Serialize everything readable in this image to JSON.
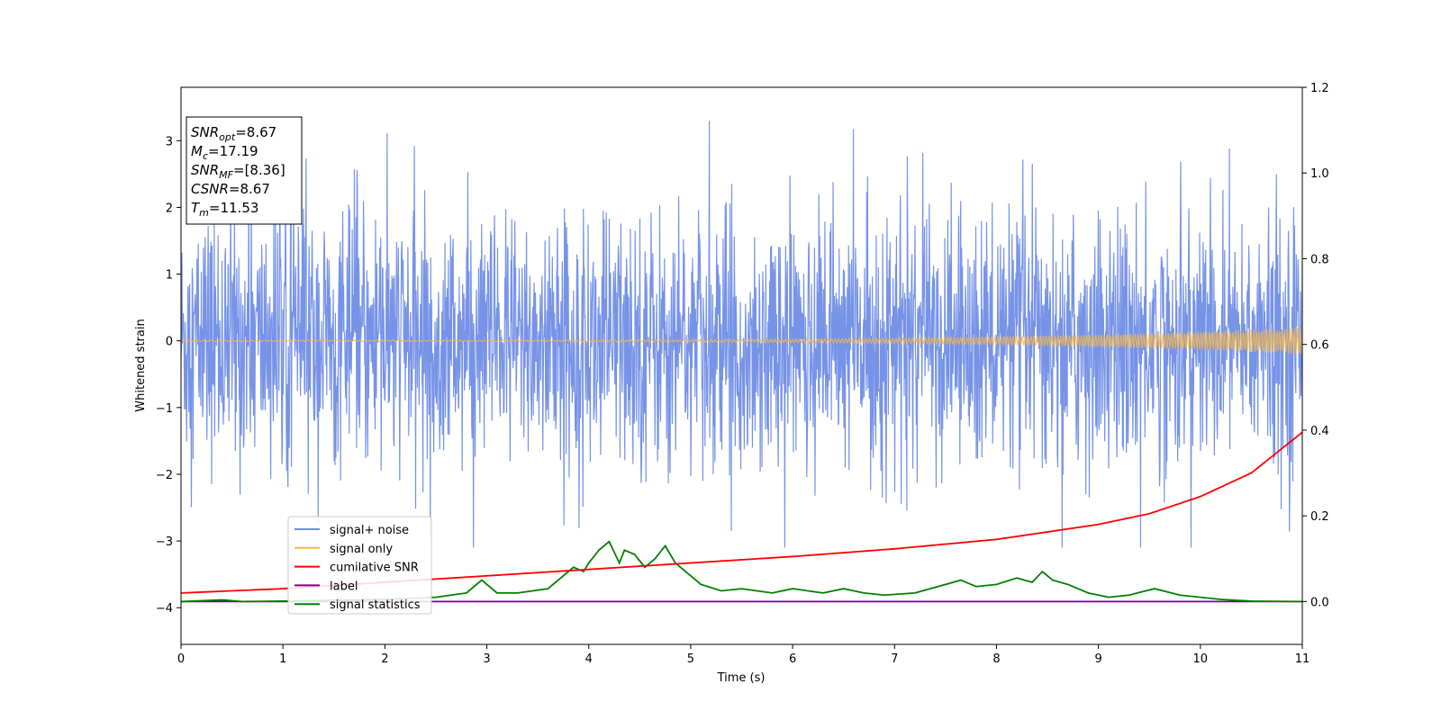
{
  "chart_data": {
    "type": "line",
    "xlabel": "Time (s)",
    "ylabel": "Whitened strain",
    "xlim": [
      0,
      11
    ],
    "ylim_left": [
      -4.55,
      3.8
    ],
    "ylim_right": [
      -0.1,
      1.2
    ],
    "x_ticks": [
      "0",
      "1",
      "2",
      "3",
      "4",
      "5",
      "6",
      "7",
      "8",
      "9",
      "10",
      "11"
    ],
    "y_left_ticks": [
      "3",
      "2",
      "1",
      "0",
      "−1",
      "−2",
      "−3",
      "−4"
    ],
    "y_left_tick_values": [
      3,
      2,
      1,
      0,
      -1,
      -2,
      -3,
      -4
    ],
    "y_right_ticks": [
      "1.2",
      "1.0",
      "0.8",
      "0.6",
      "0.4",
      "0.2",
      "0.0"
    ],
    "y_right_tick_values": [
      1.2,
      1.0,
      0.8,
      0.6,
      0.4,
      0.2,
      0.0
    ],
    "grid": false,
    "legend_placement": "lower-left",
    "info_box": [
      {
        "base": "SNR",
        "sub": "opt",
        "value": "=8.67"
      },
      {
        "base": "M",
        "sub": "c",
        "value": "=17.19"
      },
      {
        "base": "SNR",
        "sub": "MF",
        "value": "=[8.36]"
      },
      {
        "base": "CSNR",
        "sub": "",
        "value": "=8.67"
      },
      {
        "base": "T",
        "sub": "m",
        "value": "=11.53"
      }
    ],
    "series": [
      {
        "name": "signal+ noise",
        "color": "#6f8de6",
        "axis": "left",
        "kind": "noise",
        "amplitude_range": [
          -3.1,
          3.3
        ]
      },
      {
        "name": "signal only",
        "color": "#f5b84e",
        "axis": "left",
        "kind": "chirp",
        "amplitude_start": 0.01,
        "amplitude_end": 0.2
      },
      {
        "name": "cumilative SNR",
        "color": "#ff0000",
        "axis": "right",
        "x": [
          0,
          1,
          2,
          3,
          4,
          5,
          6,
          7,
          8,
          9,
          9.5,
          10,
          10.5,
          11
        ],
        "values": [
          0.02,
          0.03,
          0.045,
          0.06,
          0.075,
          0.09,
          0.105,
          0.123,
          0.145,
          0.18,
          0.205,
          0.245,
          0.3,
          0.395
        ]
      },
      {
        "name": "label",
        "color": "#800080",
        "axis": "right",
        "x": [
          0,
          11
        ],
        "values": [
          0.0,
          0.0
        ]
      },
      {
        "name": "signal statistics",
        "color": "#008000",
        "axis": "right",
        "x": [
          0,
          0.4,
          0.6,
          1,
          1.5,
          2,
          2.5,
          2.8,
          2.95,
          3.1,
          3.3,
          3.6,
          3.75,
          3.85,
          3.95,
          4.0,
          4.1,
          4.2,
          4.3,
          4.35,
          4.45,
          4.55,
          4.65,
          4.75,
          4.85,
          5.0,
          5.1,
          5.3,
          5.5,
          5.8,
          6.0,
          6.3,
          6.5,
          6.7,
          6.9,
          7.2,
          7.5,
          7.65,
          7.8,
          8.0,
          8.2,
          8.35,
          8.45,
          8.55,
          8.7,
          8.9,
          9.1,
          9.3,
          9.55,
          9.8,
          10.0,
          10.2,
          10.5,
          11
        ],
        "values": [
          0.0,
          0.004,
          0.0,
          0.001,
          0.003,
          0.005,
          0.01,
          0.02,
          0.05,
          0.02,
          0.02,
          0.03,
          0.06,
          0.08,
          0.07,
          0.09,
          0.12,
          0.14,
          0.09,
          0.12,
          0.11,
          0.08,
          0.1,
          0.13,
          0.09,
          0.06,
          0.04,
          0.025,
          0.03,
          0.02,
          0.03,
          0.02,
          0.03,
          0.02,
          0.015,
          0.02,
          0.04,
          0.05,
          0.035,
          0.04,
          0.055,
          0.045,
          0.07,
          0.05,
          0.04,
          0.02,
          0.01,
          0.015,
          0.03,
          0.015,
          0.01,
          0.005,
          0.001,
          0.0
        ]
      }
    ]
  }
}
